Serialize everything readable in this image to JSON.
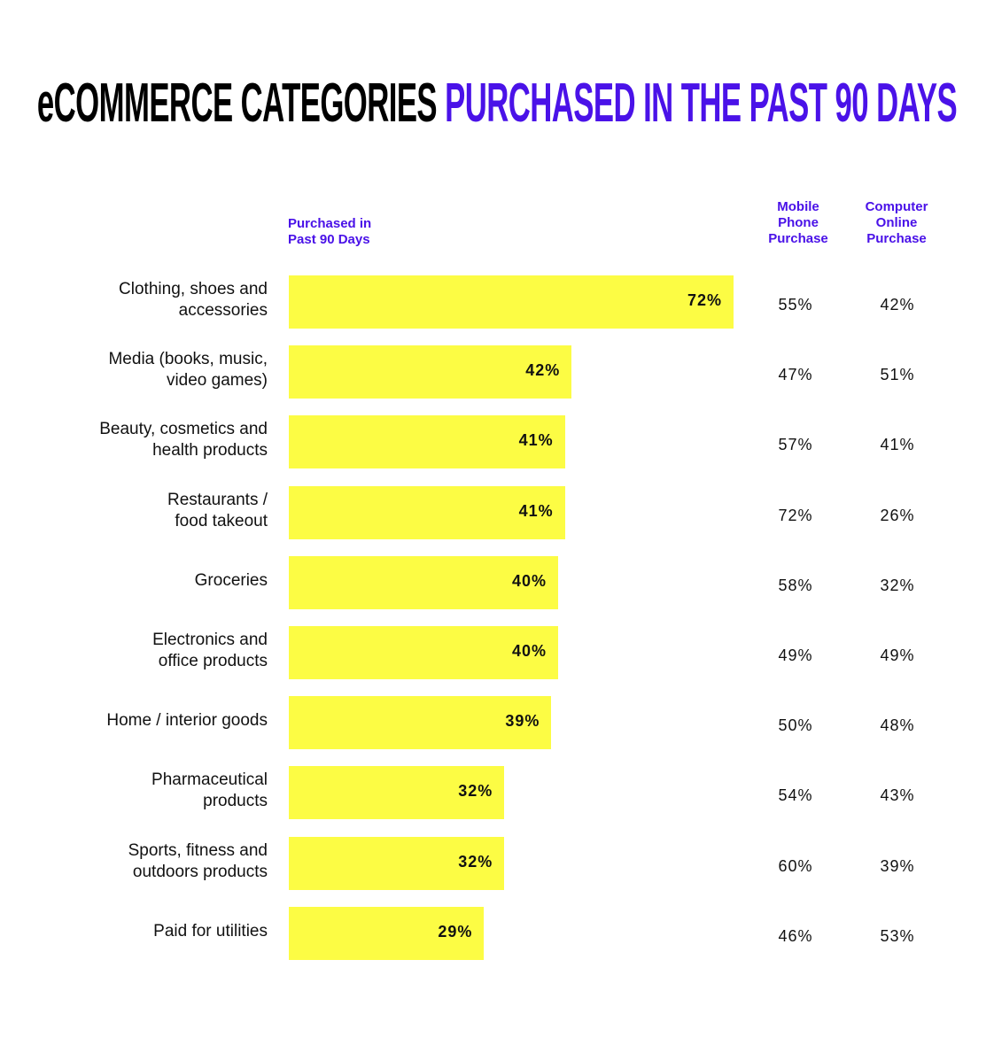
{
  "title": {
    "part1": "eCOMMERCE CATEGORIES",
    "part2": "PURCHASED IN THE PAST 90 DAYS"
  },
  "colors": {
    "accent": "#4a12e8",
    "bar": "#fcfc44",
    "text": "#111111"
  },
  "chart_data": {
    "type": "bar",
    "orientation": "horizontal",
    "categories": [
      "Clothing, shoes and accessories",
      "Media (books, music, video games)",
      "Beauty, cosmetics and health products",
      "Restaurants / food takeout",
      "Groceries",
      "Electronics and office products",
      "Home / interior goods",
      "Pharmaceutical products",
      "Sports, fitness and outdoors products",
      "Paid for utilities"
    ],
    "category_lines": [
      [
        "Clothing, shoes and",
        "accessories"
      ],
      [
        "Media (books, music,",
        "video games)"
      ],
      [
        "Beauty, cosmetics and",
        "health products"
      ],
      [
        "Restaurants /",
        "food takeout"
      ],
      [
        "Groceries"
      ],
      [
        "Electronics and",
        "office products"
      ],
      [
        "Home / interior goods"
      ],
      [
        "Pharmaceutical",
        "products"
      ],
      [
        "Sports, fitness and",
        "outdoors products"
      ],
      [
        "Paid for utilities"
      ]
    ],
    "series": [
      {
        "name": "Purchased in Past 90 Days",
        "header_lines": [
          "Purchased in",
          "Past 90 Days"
        ],
        "values": [
          72,
          42,
          41,
          41,
          40,
          40,
          39,
          32,
          32,
          29
        ],
        "labels": [
          "72%",
          "42%",
          "41%",
          "41%",
          "40%",
          "40%",
          "39%",
          "32%",
          "32%",
          "29%"
        ]
      },
      {
        "name": "Mobile Phone Purchase",
        "header_lines": [
          "Mobile",
          "Phone",
          "Purchase"
        ],
        "values": [
          55,
          47,
          57,
          72,
          58,
          49,
          50,
          54,
          60,
          46
        ],
        "labels": [
          "55%",
          "47%",
          "57%",
          "72%",
          "58%",
          "49%",
          "50%",
          "54%",
          "60%",
          "46%"
        ]
      },
      {
        "name": "Computer Online Purchase",
        "header_lines": [
          "Computer",
          "Online",
          "Purchase"
        ],
        "values": [
          42,
          51,
          41,
          26,
          32,
          49,
          48,
          43,
          39,
          53
        ],
        "labels": [
          "42%",
          "51%",
          "41%",
          "26%",
          "32%",
          "49%",
          "48%",
          "43%",
          "39%",
          "53%"
        ]
      }
    ],
    "grid": false
  }
}
